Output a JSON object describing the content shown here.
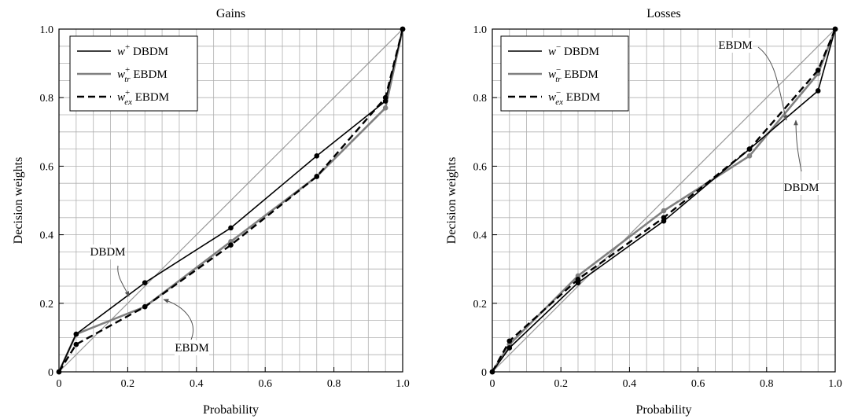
{
  "chart_data": [
    {
      "type": "line",
      "title": "Gains",
      "xlabel": "Probability",
      "ylabel": "Decision weights",
      "xlim": [
        0,
        1
      ],
      "ylim": [
        0,
        1
      ],
      "xticks": [
        "0",
        "0.2",
        "0.4",
        "0.6",
        "0.8",
        "1.0"
      ],
      "yticks": [
        "0",
        "0.2",
        "0.4",
        "0.6",
        "0.8",
        "1.0"
      ],
      "grid": true,
      "legend_position": "top-left",
      "diagonal": true,
      "x": [
        0,
        0.05,
        0.25,
        0.5,
        0.75,
        0.95,
        1.0
      ],
      "series": [
        {
          "legend_main": "w",
          "legend_sup": "+",
          "legend_sub": "",
          "legend_suffix": " DBDM",
          "style": "solid",
          "color": "#000000",
          "values": [
            0,
            0.11,
            0.26,
            0.42,
            0.63,
            0.79,
            1.0
          ]
        },
        {
          "legend_main": "w",
          "legend_sup": "+",
          "legend_sub": "tr",
          "legend_suffix": " EBDM",
          "style": "solid",
          "color": "#808080",
          "values": [
            0,
            0.11,
            0.19,
            0.38,
            0.57,
            0.77,
            1.0
          ]
        },
        {
          "legend_main": "w",
          "legend_sup": "+",
          "legend_sub": "ex",
          "legend_suffix": " EBDM",
          "style": "dashed",
          "color": "#000000",
          "values": [
            0,
            0.08,
            0.19,
            0.37,
            0.57,
            0.8,
            1.0
          ]
        }
      ],
      "annotations": [
        "DBDM",
        "EBDM"
      ]
    },
    {
      "type": "line",
      "title": "Losses",
      "xlabel": "Probability",
      "ylabel": "Decision weights",
      "xlim": [
        0,
        1
      ],
      "ylim": [
        0,
        1
      ],
      "xticks": [
        "0",
        "0.2",
        "0.4",
        "0.6",
        "0.8",
        "1.0"
      ],
      "yticks": [
        "0",
        "0.2",
        "0.4",
        "0.6",
        "0.8",
        "1.0"
      ],
      "grid": true,
      "legend_position": "top-left",
      "diagonal": true,
      "x": [
        0,
        0.05,
        0.25,
        0.5,
        0.75,
        0.95,
        1.0
      ],
      "series": [
        {
          "legend_main": "w",
          "legend_sup": "−",
          "legend_sub": "",
          "legend_suffix": " DBDM",
          "style": "solid",
          "color": "#000000",
          "values": [
            0,
            0.07,
            0.26,
            0.44,
            0.65,
            0.82,
            1.0
          ]
        },
        {
          "legend_main": "w",
          "legend_sup": "−",
          "legend_sub": "tr",
          "legend_suffix": " EBDM",
          "style": "solid",
          "color": "#808080",
          "values": [
            0,
            0.08,
            0.28,
            0.47,
            0.63,
            0.87,
            1.0
          ]
        },
        {
          "legend_main": "w",
          "legend_sup": "−",
          "legend_sub": "ex",
          "legend_suffix": " EBDM",
          "style": "dashed",
          "color": "#000000",
          "values": [
            0,
            0.09,
            0.27,
            0.45,
            0.65,
            0.88,
            1.0
          ]
        }
      ],
      "annotations": [
        "EBDM",
        "DBDM"
      ]
    }
  ]
}
